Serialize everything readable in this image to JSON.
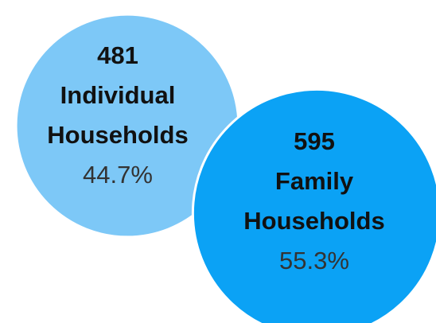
{
  "chart_data": {
    "type": "bubble",
    "categories": [
      "Individual Households",
      "Family Households"
    ],
    "values": [
      481,
      595
    ],
    "shares": [
      44.7,
      55.3
    ],
    "share_labels": [
      "44.7%",
      "55.3%"
    ],
    "colors": [
      "#7dc8f7",
      "#0ba2f5"
    ]
  }
}
